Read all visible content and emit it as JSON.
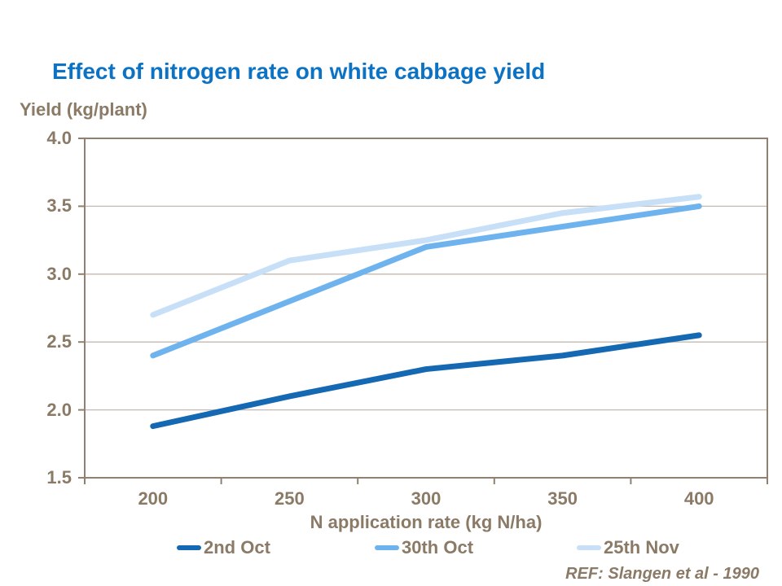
{
  "title": "Effect of nitrogen rate on white cabbage yield",
  "ref_note": "REF: Slangen et al - 1990",
  "colors": {
    "title_blue": "#0c72c4",
    "text_brown": "#8a7a66",
    "axis_border": "#8f8070",
    "gridline": "#c6bab0"
  },
  "chart_data": {
    "type": "line",
    "title": "Effect of nitrogen rate on white cabbage yield",
    "xlabel": "N application rate (kg N/ha)",
    "ylabel": "Yield (kg/plant)",
    "categories": [
      200,
      250,
      300,
      350,
      400
    ],
    "x_tick_labels": [
      "200",
      "250",
      "300",
      "350",
      "400"
    ],
    "y_tick_labels": [
      "4.0",
      "3.5",
      "3.0",
      "2.5",
      "2.0",
      "1.5"
    ],
    "ylim": [
      1.5,
      4.0
    ],
    "ytick_step": 0.5,
    "grid": "horizontal",
    "legend_position": "bottom",
    "series": [
      {
        "name": "2nd Oct",
        "color": "#1569b3",
        "values": [
          1.88,
          2.1,
          2.3,
          2.4,
          2.55
        ]
      },
      {
        "name": "30th Oct",
        "color": "#6fb3ee",
        "values": [
          2.4,
          2.8,
          3.2,
          3.35,
          3.5
        ]
      },
      {
        "name": "25th Nov",
        "color": "#c7e0f7",
        "values": [
          2.7,
          3.1,
          3.25,
          3.45,
          3.57
        ]
      }
    ]
  }
}
